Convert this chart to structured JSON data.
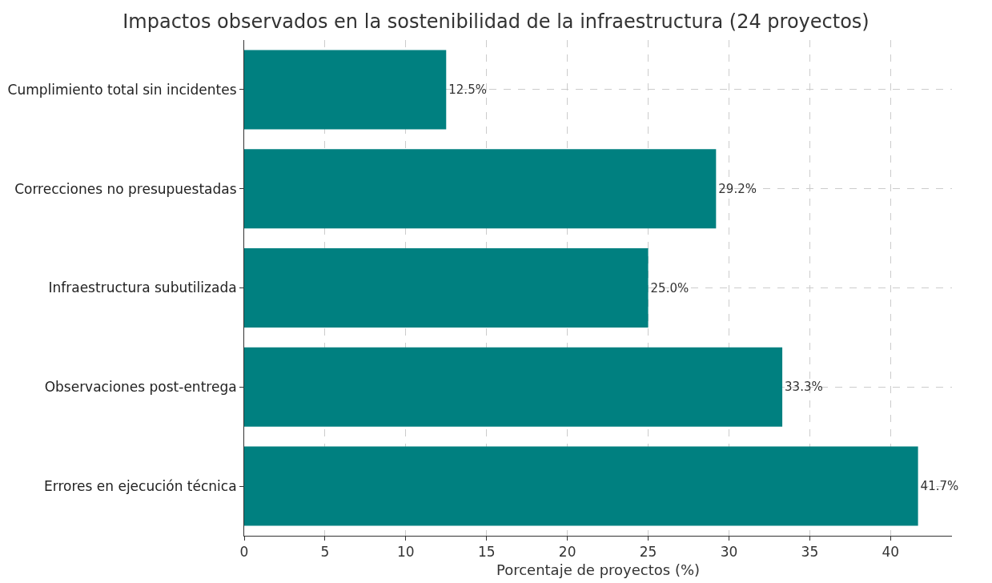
{
  "chart_data": {
    "type": "bar",
    "orientation": "horizontal",
    "title": "Impactos observados en la sostenibilidad de la infraestructura (24 proyectos)",
    "xlabel": "Porcentaje de proyectos (%)",
    "categories": [
      "Cumplimiento total sin incidentes",
      "Correcciones no presupuestadas",
      "Infraestructura subutilizada",
      "Observaciones post-entrega",
      "Errores en ejecución técnica"
    ],
    "values": [
      12.5,
      29.2,
      25.0,
      33.3,
      41.7
    ],
    "value_labels": [
      "12.5%",
      "29.2%",
      "25.0%",
      "33.3%",
      "41.7%"
    ],
    "color": "#008080",
    "xlim": [
      0,
      43.8
    ],
    "xticks": [
      0,
      5,
      10,
      15,
      20,
      25,
      30,
      35,
      40
    ],
    "grid": true
  }
}
